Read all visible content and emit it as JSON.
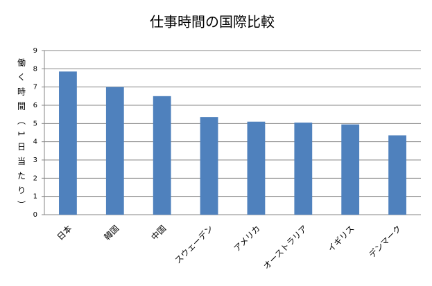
{
  "chart_data": {
    "type": "bar",
    "title": "仕事時間の国際比較",
    "y_label": "働く時間（1日当たり）",
    "categories": [
      "日本",
      "韓国",
      "中国",
      "スウェーデン",
      "アメリカ",
      "オーストラリア",
      "イギリス",
      "デンマーク"
    ],
    "values": [
      7.85,
      7.0,
      6.5,
      5.35,
      5.1,
      5.05,
      4.95,
      4.35
    ],
    "color": "#4f81bd",
    "ylim": [
      0,
      9
    ],
    "yticks": [
      0,
      1,
      2,
      3,
      4,
      5,
      6,
      7,
      8,
      9
    ],
    "grid": true
  }
}
